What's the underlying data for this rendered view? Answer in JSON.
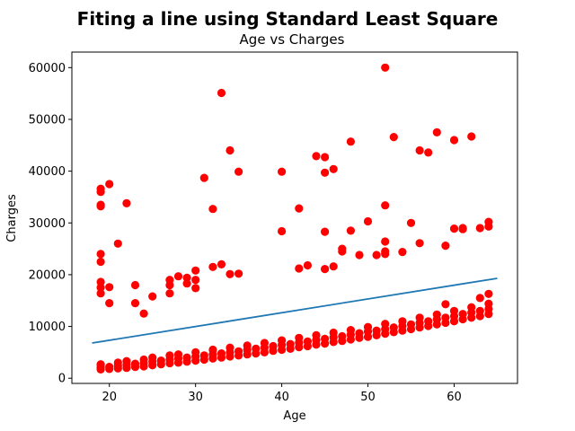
{
  "chart_data": {
    "type": "scatter",
    "suptitle": "Fiting a line using Standard Least Square",
    "title": "Age vs Charges",
    "xlabel": "Age",
    "ylabel": "Charges",
    "xlim": [
      15.65,
      67.35
    ],
    "ylim": [
      -1000,
      63000
    ],
    "xticks": [
      20,
      30,
      40,
      50,
      60
    ],
    "xtick_labels": [
      "20",
      "30",
      "40",
      "50",
      "60"
    ],
    "yticks": [
      0,
      10000,
      20000,
      30000,
      40000,
      50000,
      60000
    ],
    "ytick_labels": [
      "0",
      "10000",
      "20000",
      "30000",
      "40000",
      "50000",
      "60000"
    ],
    "grid": false,
    "colors": {
      "points": "#ff0000",
      "line": "#1f77b4",
      "axes": "#000000"
    },
    "series": [
      {
        "kind": "points",
        "points": [
          [
            19,
            1700
          ],
          [
            19,
            2000
          ],
          [
            19,
            2300
          ],
          [
            19,
            2700
          ],
          [
            20,
            1800
          ],
          [
            20,
            2200
          ],
          [
            21,
            1900
          ],
          [
            21,
            2400
          ],
          [
            21,
            3000
          ],
          [
            22,
            2000
          ],
          [
            22,
            2600
          ],
          [
            22,
            3300
          ],
          [
            23,
            2200
          ],
          [
            23,
            2800
          ],
          [
            24,
            2300
          ],
          [
            24,
            2900
          ],
          [
            24,
            3600
          ],
          [
            25,
            2500
          ],
          [
            25,
            3200
          ],
          [
            25,
            4000
          ],
          [
            26,
            2700
          ],
          [
            26,
            3400
          ],
          [
            27,
            2900
          ],
          [
            27,
            3600
          ],
          [
            27,
            4400
          ],
          [
            28,
            3000
          ],
          [
            28,
            3800
          ],
          [
            28,
            4600
          ],
          [
            29,
            3200
          ],
          [
            29,
            4000
          ],
          [
            30,
            3400
          ],
          [
            30,
            4200
          ],
          [
            30,
            5000
          ],
          [
            31,
            3600
          ],
          [
            31,
            4400
          ],
          [
            32,
            3800
          ],
          [
            32,
            4600
          ],
          [
            32,
            5500
          ],
          [
            33,
            4000
          ],
          [
            33,
            4800
          ],
          [
            34,
            4200
          ],
          [
            34,
            5000
          ],
          [
            34,
            5900
          ],
          [
            35,
            4400
          ],
          [
            35,
            5200
          ],
          [
            36,
            4600
          ],
          [
            36,
            5500
          ],
          [
            36,
            6300
          ],
          [
            37,
            4800
          ],
          [
            37,
            5700
          ],
          [
            38,
            5000
          ],
          [
            38,
            5900
          ],
          [
            38,
            6800
          ],
          [
            39,
            5300
          ],
          [
            39,
            6200
          ],
          [
            40,
            5500
          ],
          [
            40,
            6400
          ],
          [
            40,
            7300
          ],
          [
            41,
            5700
          ],
          [
            41,
            6600
          ],
          [
            42,
            6000
          ],
          [
            42,
            6900
          ],
          [
            42,
            7800
          ],
          [
            43,
            6200
          ],
          [
            43,
            7100
          ],
          [
            44,
            6500
          ],
          [
            44,
            7400
          ],
          [
            44,
            8300
          ],
          [
            45,
            6700
          ],
          [
            45,
            7600
          ],
          [
            46,
            7000
          ],
          [
            46,
            7900
          ],
          [
            46,
            8800
          ],
          [
            47,
            7200
          ],
          [
            47,
            8100
          ],
          [
            48,
            7500
          ],
          [
            48,
            8400
          ],
          [
            48,
            9300
          ],
          [
            49,
            7800
          ],
          [
            49,
            8700
          ],
          [
            50,
            8000
          ],
          [
            50,
            9000
          ],
          [
            50,
            9900
          ],
          [
            51,
            8300
          ],
          [
            51,
            9200
          ],
          [
            52,
            8600
          ],
          [
            52,
            9500
          ],
          [
            52,
            10500
          ],
          [
            53,
            8900
          ],
          [
            53,
            9800
          ],
          [
            54,
            9200
          ],
          [
            54,
            10100
          ],
          [
            54,
            11000
          ],
          [
            55,
            9500
          ],
          [
            55,
            10400
          ],
          [
            56,
            9800
          ],
          [
            56,
            10700
          ],
          [
            56,
            11700
          ],
          [
            57,
            10100
          ],
          [
            57,
            11000
          ],
          [
            58,
            10400
          ],
          [
            58,
            11400
          ],
          [
            58,
            12300
          ],
          [
            59,
            10700
          ],
          [
            59,
            11700
          ],
          [
            60,
            11000
          ],
          [
            60,
            12000
          ],
          [
            60,
            13000
          ],
          [
            61,
            11400
          ],
          [
            61,
            12400
          ],
          [
            62,
            11700
          ],
          [
            62,
            12700
          ],
          [
            62,
            13700
          ],
          [
            63,
            12000
          ],
          [
            63,
            13000
          ],
          [
            64,
            12400
          ],
          [
            64,
            13400
          ],
          [
            64,
            14400
          ],
          [
            59,
            14300
          ],
          [
            63,
            15500
          ],
          [
            64,
            16300
          ],
          [
            19,
            16400
          ],
          [
            19,
            17500
          ],
          [
            19,
            18600
          ],
          [
            20,
            17600
          ],
          [
            20,
            14500
          ],
          [
            21,
            26000
          ],
          [
            22,
            33800
          ],
          [
            23,
            18000
          ],
          [
            23,
            14500
          ],
          [
            24,
            12500
          ],
          [
            25,
            15800
          ],
          [
            27,
            18000
          ],
          [
            27,
            19000
          ],
          [
            27,
            16400
          ],
          [
            28,
            19700
          ],
          [
            29,
            19400
          ],
          [
            29,
            18300
          ],
          [
            30,
            20800
          ],
          [
            30,
            19000
          ],
          [
            30,
            17400
          ],
          [
            31,
            38700
          ],
          [
            32,
            32700
          ],
          [
            32,
            21500
          ],
          [
            33,
            22000
          ],
          [
            33,
            55100
          ],
          [
            34,
            44000
          ],
          [
            34,
            20100
          ],
          [
            35,
            39900
          ],
          [
            35,
            20200
          ],
          [
            40,
            39900
          ],
          [
            40,
            28400
          ],
          [
            42,
            32800
          ],
          [
            42,
            21200
          ],
          [
            43,
            21800
          ],
          [
            44,
            42900
          ],
          [
            45,
            42700
          ],
          [
            45,
            39700
          ],
          [
            45,
            28300
          ],
          [
            45,
            21100
          ],
          [
            46,
            40400
          ],
          [
            46,
            21600
          ],
          [
            47,
            25000
          ],
          [
            47,
            24500
          ],
          [
            48,
            45700
          ],
          [
            48,
            28500
          ],
          [
            49,
            23800
          ],
          [
            50,
            30300
          ],
          [
            51,
            23800
          ],
          [
            52,
            60000
          ],
          [
            52,
            33400
          ],
          [
            52,
            26400
          ],
          [
            52,
            24500
          ],
          [
            52,
            24000
          ],
          [
            53,
            46600
          ],
          [
            54,
            24400
          ],
          [
            55,
            30000
          ],
          [
            56,
            44000
          ],
          [
            56,
            26100
          ],
          [
            57,
            43600
          ],
          [
            58,
            47500
          ],
          [
            59,
            25600
          ],
          [
            60,
            46000
          ],
          [
            60,
            28900
          ],
          [
            61,
            29000
          ],
          [
            61,
            28800
          ],
          [
            62,
            46700
          ],
          [
            63,
            29000
          ],
          [
            64,
            30200
          ],
          [
            64,
            29300
          ],
          [
            19,
            36600
          ],
          [
            19,
            36000
          ],
          [
            19,
            33500
          ],
          [
            19,
            33200
          ],
          [
            19,
            24000
          ],
          [
            19,
            22500
          ],
          [
            20,
            37500
          ]
        ]
      },
      {
        "kind": "line",
        "x": [
          18,
          65
        ],
        "y": [
          6800,
          19300
        ]
      }
    ]
  }
}
